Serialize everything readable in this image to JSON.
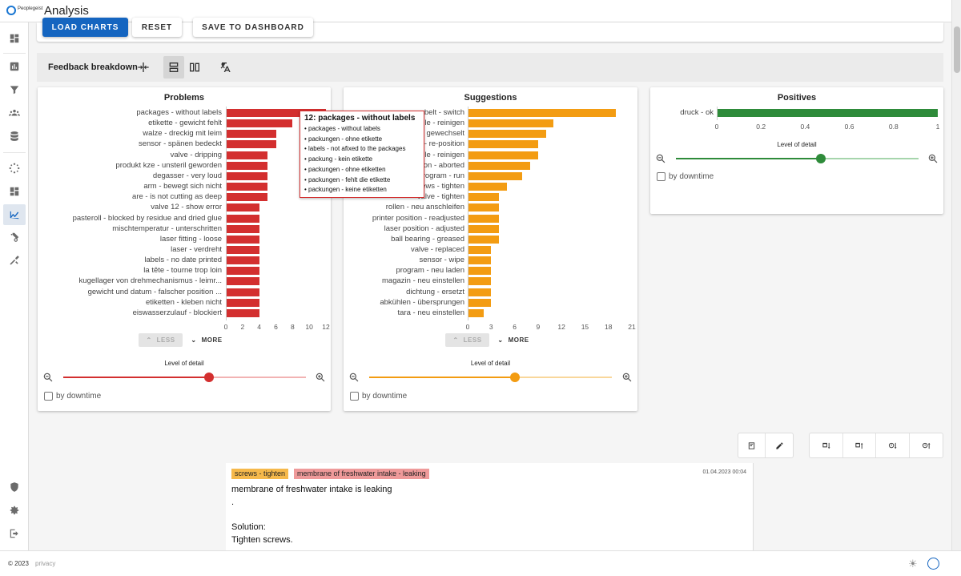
{
  "app": {
    "logo_text": "Peoplegeist",
    "title": "Analysis"
  },
  "actions": {
    "load": "LOAD CHARTS",
    "reset": "RESET",
    "save": "SAVE TO DASHBOARD"
  },
  "toolbar": {
    "label": "Feedback breakdown"
  },
  "colors": {
    "problems": "#d32f2f",
    "suggestions": "#f39c12",
    "positives": "#2e8b3a",
    "primary": "#1565c0"
  },
  "panels": {
    "problems": {
      "title": "Problems",
      "less": "LESS",
      "more": "MORE",
      "lod": "Level of detail",
      "downtime": "by downtime",
      "lod_value": 0.6
    },
    "suggestions": {
      "title": "Suggestions",
      "less": "LESS",
      "more": "MORE",
      "lod": "Level of detail",
      "downtime": "by downtime",
      "lod_value": 0.6
    },
    "positives": {
      "title": "Positives",
      "lod": "Level of detail",
      "downtime": "by downtime",
      "lod_value": 0.6
    }
  },
  "tooltip": {
    "title": "12: packages - without labels",
    "items": [
      "packages - without labels",
      "packungen - ohne etikette",
      "labels - not afixed to the packages",
      "packung - kein etikette",
      "packungen - ohne etiketten",
      "packungen - fehlt die etikette",
      "packungen - keine etiketten"
    ]
  },
  "chart_data": [
    {
      "type": "bar",
      "title": "Problems",
      "orientation": "horizontal",
      "categories": [
        "packages - without labels",
        "etikette - gewicht fehlt",
        "walze - dreckig mit leim",
        "sensor - spänen bedeckt",
        "valve - dripping",
        "produkt kze - unsteril geworden",
        "degasser - very loud",
        "arm - bewegt sich nicht",
        "are - is not cutting as deep",
        "valve 12 - show error",
        "pasteroll - blocked by residue and dried glue",
        "mischtemperatur - unterschritten",
        "laser fitting - loose",
        "laser - verdreht",
        "labels - no date printed",
        "la tête - tourne trop loin",
        "kugellager von drehmechanismus - leimr...",
        "gewicht und datum - falscher position ...",
        "etiketten - kleben nicht",
        "eiswasserzulauf - blockiert"
      ],
      "values": [
        12,
        8,
        6,
        6,
        5,
        5,
        5,
        5,
        5,
        4,
        4,
        4,
        4,
        4,
        4,
        4,
        4,
        4,
        4,
        4
      ],
      "xticks": [
        "0",
        "2",
        "4",
        "6",
        "8",
        "10",
        "12"
      ],
      "xlim": [
        0,
        12
      ]
    },
    {
      "type": "bar",
      "title": "Suggestions",
      "orientation": "horizontal",
      "categories": [
        "belt - switch",
        "nozzle - reinigen",
        "filter - gewechselt",
        "sensor - re-position",
        "nozzle - reinigen",
        "calibration - aborted",
        "program - run",
        "screws - tighten",
        "valve - tighten",
        "rollen - neu anschleifen",
        "printer position - readjusted",
        "laser position - adjusted",
        "ball bearing - greased",
        "valve - replaced",
        "sensor - wipe",
        "program - neu laden",
        "magazin - neu einstellen",
        "dichtung - ersetzt",
        "abkühlen - übersprungen",
        "tara - neu einstellen"
      ],
      "values": [
        19,
        11,
        10,
        9,
        9,
        8,
        7,
        5,
        4,
        4,
        4,
        4,
        4,
        3,
        3,
        3,
        3,
        3,
        3,
        2
      ],
      "xticks": [
        "0",
        "3",
        "6",
        "9",
        "12",
        "15",
        "18",
        "21"
      ],
      "xlim": [
        0,
        21
      ]
    },
    {
      "type": "bar",
      "title": "Positives",
      "orientation": "horizontal",
      "categories": [
        "druck - ok"
      ],
      "values": [
        1
      ],
      "xticks": [
        "0",
        "0.2",
        "0.4",
        "0.6",
        "0.8",
        "1"
      ],
      "xlim": [
        0,
        1
      ]
    }
  ],
  "entry": {
    "tags": [
      "screws - tighten",
      "membrane of freshwater intake - leaking"
    ],
    "date": "01.04.2023 00:04",
    "lines": [
      "membrane of freshwater intake is leaking",
      ".",
      "Solution:",
      "Tighten screws."
    ]
  },
  "footer": {
    "copyright": "© 2023",
    "privacy": "privacy"
  }
}
